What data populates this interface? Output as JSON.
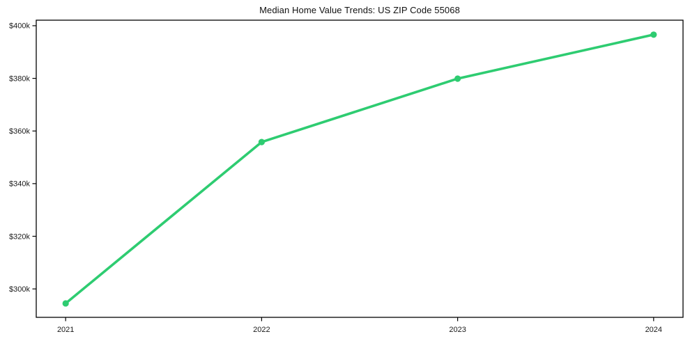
{
  "chart_data": {
    "type": "line",
    "title": "Median Home Value Trends: US ZIP Code 55068",
    "series": [
      {
        "name": "Median Home Value",
        "x": [
          2021,
          2022,
          2023,
          2024
        ],
        "values": [
          294500,
          355800,
          379900,
          396600
        ],
        "color": "#2ecc71",
        "marker": "circle"
      }
    ],
    "categories": [
      "2021",
      "2022",
      "2023",
      "2024"
    ],
    "x_tick_labels": [
      "2021",
      "2022",
      "2023",
      "2024"
    ],
    "y_ticks": [
      300000,
      320000,
      340000,
      360000,
      380000,
      400000
    ],
    "y_tick_labels": [
      "$300k",
      "$320k",
      "$340k",
      "$360k",
      "$380k",
      "$400k"
    ],
    "xlim": [
      2020.85,
      2024.15
    ],
    "ylim": [
      289200,
      402100
    ],
    "xlabel": "",
    "ylabel": "",
    "grid": false,
    "legend": false,
    "colors": {
      "line": "#2ecc71",
      "spine": "#000000",
      "tick_label": "#1a1a1a",
      "background": "#ffffff"
    }
  }
}
